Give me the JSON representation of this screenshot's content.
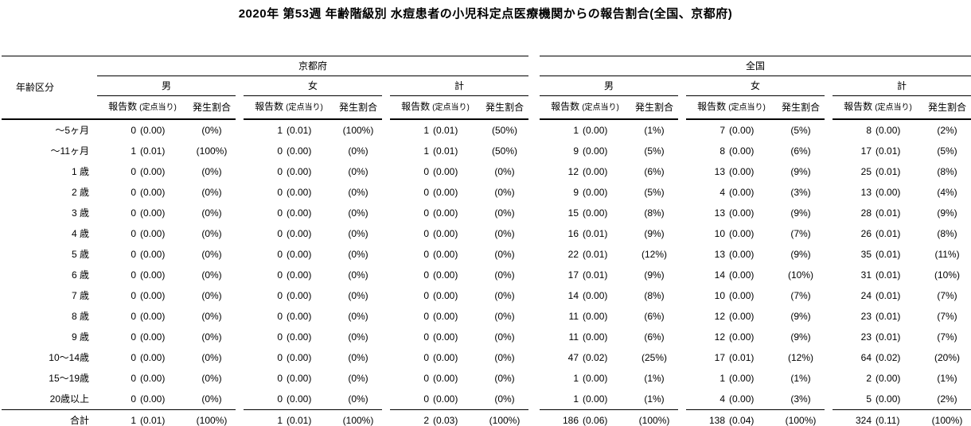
{
  "title": "2020年 第53週 年齢階級別 水痘患者の小児科定点医療機関からの報告割合(全国、京都府)",
  "table": {
    "age_header": "年齢区分",
    "regions": [
      "京都府",
      "全国"
    ],
    "sexes": [
      "男",
      "女",
      "計"
    ],
    "subheaders": {
      "count": "報告数",
      "count_small": "(定点当り)",
      "rate": "発生割合"
    },
    "rows": [
      {
        "age": "～5ヶ月",
        "groups": [
          {
            "n": "0",
            "d": "(0.00)",
            "p": "(0%)"
          },
          {
            "n": "1",
            "d": "(0.01)",
            "p": "(100%)"
          },
          {
            "n": "1",
            "d": "(0.01)",
            "p": "(50%)"
          },
          {
            "n": "1",
            "d": "(0.00)",
            "p": "(1%)"
          },
          {
            "n": "7",
            "d": "(0.00)",
            "p": "(5%)"
          },
          {
            "n": "8",
            "d": "(0.00)",
            "p": "(2%)"
          }
        ]
      },
      {
        "age": "～11ヶ月",
        "groups": [
          {
            "n": "1",
            "d": "(0.01)",
            "p": "(100%)"
          },
          {
            "n": "0",
            "d": "(0.00)",
            "p": "(0%)"
          },
          {
            "n": "1",
            "d": "(0.01)",
            "p": "(50%)"
          },
          {
            "n": "9",
            "d": "(0.00)",
            "p": "(5%)"
          },
          {
            "n": "8",
            "d": "(0.00)",
            "p": "(6%)"
          },
          {
            "n": "17",
            "d": "(0.01)",
            "p": "(5%)"
          }
        ]
      },
      {
        "age": "1 歳",
        "groups": [
          {
            "n": "0",
            "d": "(0.00)",
            "p": "(0%)"
          },
          {
            "n": "0",
            "d": "(0.00)",
            "p": "(0%)"
          },
          {
            "n": "0",
            "d": "(0.00)",
            "p": "(0%)"
          },
          {
            "n": "12",
            "d": "(0.00)",
            "p": "(6%)"
          },
          {
            "n": "13",
            "d": "(0.00)",
            "p": "(9%)"
          },
          {
            "n": "25",
            "d": "(0.01)",
            "p": "(8%)"
          }
        ]
      },
      {
        "age": "2 歳",
        "groups": [
          {
            "n": "0",
            "d": "(0.00)",
            "p": "(0%)"
          },
          {
            "n": "0",
            "d": "(0.00)",
            "p": "(0%)"
          },
          {
            "n": "0",
            "d": "(0.00)",
            "p": "(0%)"
          },
          {
            "n": "9",
            "d": "(0.00)",
            "p": "(5%)"
          },
          {
            "n": "4",
            "d": "(0.00)",
            "p": "(3%)"
          },
          {
            "n": "13",
            "d": "(0.00)",
            "p": "(4%)"
          }
        ]
      },
      {
        "age": "3 歳",
        "groups": [
          {
            "n": "0",
            "d": "(0.00)",
            "p": "(0%)"
          },
          {
            "n": "0",
            "d": "(0.00)",
            "p": "(0%)"
          },
          {
            "n": "0",
            "d": "(0.00)",
            "p": "(0%)"
          },
          {
            "n": "15",
            "d": "(0.00)",
            "p": "(8%)"
          },
          {
            "n": "13",
            "d": "(0.00)",
            "p": "(9%)"
          },
          {
            "n": "28",
            "d": "(0.01)",
            "p": "(9%)"
          }
        ]
      },
      {
        "age": "4 歳",
        "groups": [
          {
            "n": "0",
            "d": "(0.00)",
            "p": "(0%)"
          },
          {
            "n": "0",
            "d": "(0.00)",
            "p": "(0%)"
          },
          {
            "n": "0",
            "d": "(0.00)",
            "p": "(0%)"
          },
          {
            "n": "16",
            "d": "(0.01)",
            "p": "(9%)"
          },
          {
            "n": "10",
            "d": "(0.00)",
            "p": "(7%)"
          },
          {
            "n": "26",
            "d": "(0.01)",
            "p": "(8%)"
          }
        ]
      },
      {
        "age": "5 歳",
        "groups": [
          {
            "n": "0",
            "d": "(0.00)",
            "p": "(0%)"
          },
          {
            "n": "0",
            "d": "(0.00)",
            "p": "(0%)"
          },
          {
            "n": "0",
            "d": "(0.00)",
            "p": "(0%)"
          },
          {
            "n": "22",
            "d": "(0.01)",
            "p": "(12%)"
          },
          {
            "n": "13",
            "d": "(0.00)",
            "p": "(9%)"
          },
          {
            "n": "35",
            "d": "(0.01)",
            "p": "(11%)"
          }
        ]
      },
      {
        "age": "6 歳",
        "groups": [
          {
            "n": "0",
            "d": "(0.00)",
            "p": "(0%)"
          },
          {
            "n": "0",
            "d": "(0.00)",
            "p": "(0%)"
          },
          {
            "n": "0",
            "d": "(0.00)",
            "p": "(0%)"
          },
          {
            "n": "17",
            "d": "(0.01)",
            "p": "(9%)"
          },
          {
            "n": "14",
            "d": "(0.00)",
            "p": "(10%)"
          },
          {
            "n": "31",
            "d": "(0.01)",
            "p": "(10%)"
          }
        ]
      },
      {
        "age": "7 歳",
        "groups": [
          {
            "n": "0",
            "d": "(0.00)",
            "p": "(0%)"
          },
          {
            "n": "0",
            "d": "(0.00)",
            "p": "(0%)"
          },
          {
            "n": "0",
            "d": "(0.00)",
            "p": "(0%)"
          },
          {
            "n": "14",
            "d": "(0.00)",
            "p": "(8%)"
          },
          {
            "n": "10",
            "d": "(0.00)",
            "p": "(7%)"
          },
          {
            "n": "24",
            "d": "(0.01)",
            "p": "(7%)"
          }
        ]
      },
      {
        "age": "8 歳",
        "groups": [
          {
            "n": "0",
            "d": "(0.00)",
            "p": "(0%)"
          },
          {
            "n": "0",
            "d": "(0.00)",
            "p": "(0%)"
          },
          {
            "n": "0",
            "d": "(0.00)",
            "p": "(0%)"
          },
          {
            "n": "11",
            "d": "(0.00)",
            "p": "(6%)"
          },
          {
            "n": "12",
            "d": "(0.00)",
            "p": "(9%)"
          },
          {
            "n": "23",
            "d": "(0.01)",
            "p": "(7%)"
          }
        ]
      },
      {
        "age": "9 歳",
        "groups": [
          {
            "n": "0",
            "d": "(0.00)",
            "p": "(0%)"
          },
          {
            "n": "0",
            "d": "(0.00)",
            "p": "(0%)"
          },
          {
            "n": "0",
            "d": "(0.00)",
            "p": "(0%)"
          },
          {
            "n": "11",
            "d": "(0.00)",
            "p": "(6%)"
          },
          {
            "n": "12",
            "d": "(0.00)",
            "p": "(9%)"
          },
          {
            "n": "23",
            "d": "(0.01)",
            "p": "(7%)"
          }
        ]
      },
      {
        "age": "10～14歳",
        "groups": [
          {
            "n": "0",
            "d": "(0.00)",
            "p": "(0%)"
          },
          {
            "n": "0",
            "d": "(0.00)",
            "p": "(0%)"
          },
          {
            "n": "0",
            "d": "(0.00)",
            "p": "(0%)"
          },
          {
            "n": "47",
            "d": "(0.02)",
            "p": "(25%)"
          },
          {
            "n": "17",
            "d": "(0.01)",
            "p": "(12%)"
          },
          {
            "n": "64",
            "d": "(0.02)",
            "p": "(20%)"
          }
        ]
      },
      {
        "age": "15～19歳",
        "groups": [
          {
            "n": "0",
            "d": "(0.00)",
            "p": "(0%)"
          },
          {
            "n": "0",
            "d": "(0.00)",
            "p": "(0%)"
          },
          {
            "n": "0",
            "d": "(0.00)",
            "p": "(0%)"
          },
          {
            "n": "1",
            "d": "(0.00)",
            "p": "(1%)"
          },
          {
            "n": "1",
            "d": "(0.00)",
            "p": "(1%)"
          },
          {
            "n": "2",
            "d": "(0.00)",
            "p": "(1%)"
          }
        ]
      },
      {
        "age": "20歳以上",
        "groups": [
          {
            "n": "0",
            "d": "(0.00)",
            "p": "(0%)"
          },
          {
            "n": "0",
            "d": "(0.00)",
            "p": "(0%)"
          },
          {
            "n": "0",
            "d": "(0.00)",
            "p": "(0%)"
          },
          {
            "n": "1",
            "d": "(0.00)",
            "p": "(1%)"
          },
          {
            "n": "4",
            "d": "(0.00)",
            "p": "(3%)"
          },
          {
            "n": "5",
            "d": "(0.00)",
            "p": "(2%)"
          }
        ]
      },
      {
        "age": "合計",
        "groups": [
          {
            "n": "1",
            "d": "(0.01)",
            "p": "(100%)"
          },
          {
            "n": "1",
            "d": "(0.01)",
            "p": "(100%)"
          },
          {
            "n": "2",
            "d": "(0.03)",
            "p": "(100%)"
          },
          {
            "n": "186",
            "d": "(0.06)",
            "p": "(100%)"
          },
          {
            "n": "138",
            "d": "(0.04)",
            "p": "(100%)"
          },
          {
            "n": "324",
            "d": "(0.11)",
            "p": "(100%)"
          }
        ]
      }
    ]
  }
}
